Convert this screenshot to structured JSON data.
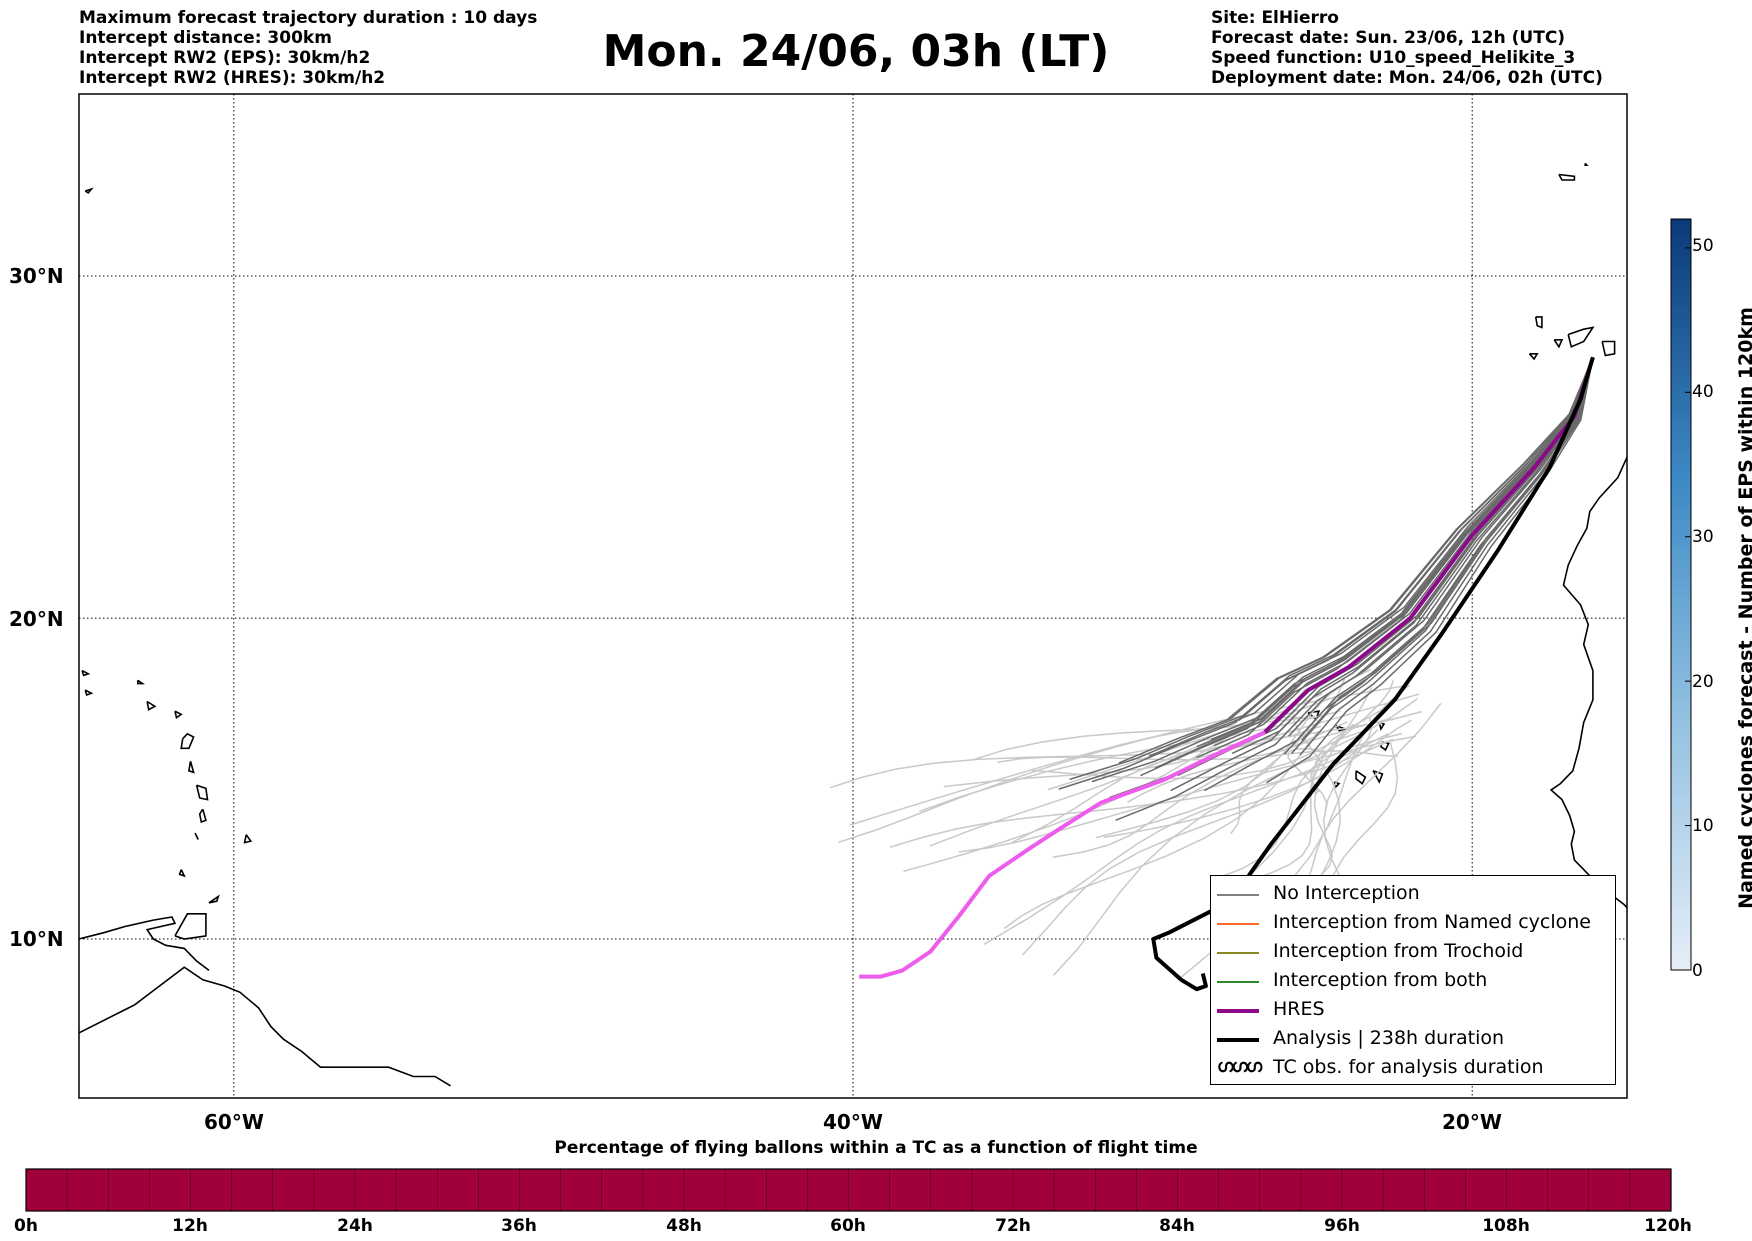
{
  "header_left": [
    "Maximum forecast trajectory duration : 10 days",
    "Intercept distance: 300km",
    "Intercept RW2 (EPS):  30km/h2",
    "Intercept RW2 (HRES): 30km/h2"
  ],
  "header_right": [
    "Site: ElHierro",
    "Forecast date: Sun. 23/06, 12h (UTC)",
    "Speed function: U10_speed_Helikite_3",
    "Deployment date: Mon. 24/06, 02h (UTC)"
  ],
  "title": "Mon. 24/06, 03h (LT)",
  "map": {
    "lon_range": [
      -65,
      15
    ],
    "lat_range": [
      5,
      35.5
    ],
    "lat_ticks": [
      "30°N",
      "20°N",
      "10°N"
    ],
    "lat_values": [
      30,
      20,
      10
    ],
    "lon_ticks": [
      "60°W",
      "40°W",
      "20°W"
    ],
    "lon_values": [
      -60,
      -40,
      -20
    ],
    "grid": true
  },
  "legend": {
    "items": [
      {
        "label": "No Interception",
        "color": "#808080"
      },
      {
        "label": "Interception from Named cyclone",
        "color": "#ff6a2a"
      },
      {
        "label": "Interception from Trochoid",
        "color": "#8a8a22"
      },
      {
        "label": "Interception from both",
        "color": "#2a8a2a"
      },
      {
        "label": "HRES",
        "color": "#8b0a8b"
      },
      {
        "label": "Analysis | 238h duration",
        "color": "#000000"
      },
      {
        "label": "TC obs. for analysis duration",
        "icon": "cyclone-symbol-icon",
        "symbol": "ഗഗഗ"
      }
    ]
  },
  "cyclone_colorbar": {
    "title": "Named cyclones forecast - Number of EPS within 120km",
    "ticks": [
      "0",
      "10",
      "20",
      "30",
      "40",
      "50"
    ],
    "range": [
      0,
      52
    ],
    "colors": [
      "#e6eef8",
      "#0a3a78"
    ]
  },
  "percentage_bar": {
    "title": "Percentage of flying ballons within a TC as a function of flight time",
    "ticks": [
      "0h",
      "12h",
      "24h",
      "36h",
      "48h",
      "60h",
      "72h",
      "84h",
      "96h",
      "108h",
      "120h"
    ],
    "values_percent": [
      0,
      0,
      0,
      0,
      0,
      0,
      0,
      0,
      0,
      0,
      0,
      0,
      0,
      0,
      0,
      0,
      0,
      0,
      0,
      0,
      0,
      0,
      0,
      0,
      0,
      0,
      0,
      0,
      0,
      0,
      0,
      0,
      0,
      0,
      0,
      0,
      0,
      0,
      0,
      0
    ],
    "color": "#a0003c"
  },
  "trajectories": {
    "analysis": [
      [
        -16.1,
        27.7
      ],
      [
        -16.5,
        26.5
      ],
      [
        -17.5,
        24.5
      ],
      [
        -19.2,
        22.0
      ],
      [
        -21.0,
        19.5
      ],
      [
        -22.5,
        17.5
      ],
      [
        -24.5,
        15.5
      ],
      [
        -26.5,
        13.0
      ],
      [
        -27.8,
        11.2
      ],
      [
        -29.8,
        10.2
      ],
      [
        -30.3,
        10.0
      ],
      [
        -30.2,
        9.4
      ],
      [
        -29.4,
        8.7
      ],
      [
        -28.9,
        8.4
      ],
      [
        -28.6,
        8.5
      ],
      [
        -28.7,
        8.9
      ]
    ],
    "hres": [
      [
        -16.1,
        27.7
      ],
      [
        -16.7,
        26.0
      ],
      [
        -18.0,
        24.5
      ],
      [
        -20.0,
        22.5
      ],
      [
        -22.0,
        20.0
      ],
      [
        -24.0,
        18.5
      ],
      [
        -25.3,
        17.8
      ],
      [
        -26.7,
        16.5
      ],
      [
        -28.3,
        15.8
      ],
      [
        -30.0,
        15.0
      ],
      [
        -32.0,
        14.3
      ],
      [
        -33.3,
        13.5
      ],
      [
        -34.4,
        12.8
      ],
      [
        -35.6,
        12.0
      ],
      [
        -36.6,
        10.7
      ],
      [
        -37.5,
        9.6
      ],
      [
        -38.4,
        9.0
      ],
      [
        -39.1,
        8.8
      ],
      [
        -39.8,
        8.8
      ]
    ],
    "eps_dark_count": 26,
    "eps_light_count": 34
  }
}
